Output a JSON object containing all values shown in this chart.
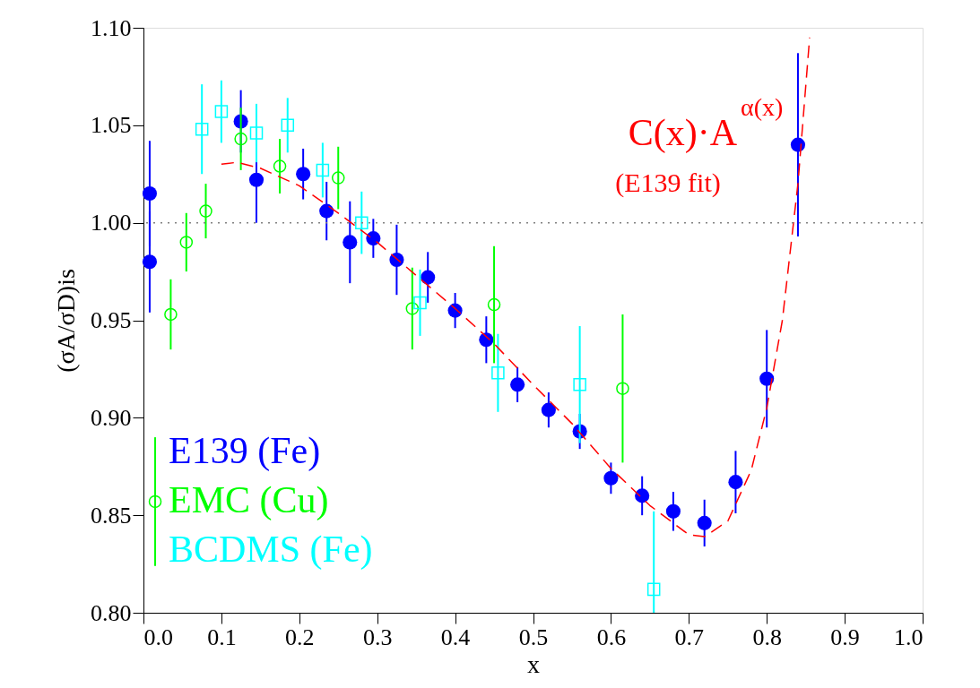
{
  "chart_data": {
    "type": "scatter",
    "xlabel": "x",
    "ylabel": "(σA/σD)is",
    "xlim": [
      0,
      1.0
    ],
    "ylim": [
      0.8,
      1.1
    ],
    "xticks": [
      {
        "value": 0,
        "label": "0.0"
      },
      0.1,
      0.2,
      0.3,
      0.4,
      0.5,
      0.6,
      0.7,
      0.8,
      0.9,
      {
        "value": 1.0,
        "label": "1.0"
      }
    ],
    "yticks": [
      {
        "value": 0.8,
        "label": "0.80"
      },
      0.85,
      {
        "value": 0.9,
        "label": "0.90"
      },
      0.95,
      {
        "value": 1.0,
        "label": "1.00"
      },
      1.05,
      {
        "value": 1.1,
        "label": "1.10"
      }
    ],
    "grid": false,
    "legend": "bottom left",
    "series": [
      {
        "name": "E139 (Fe)",
        "color": "#0000ff",
        "marker": "circle",
        "x": [
          0.008,
          0.008,
          0.125,
          0.145,
          0.205,
          0.235,
          0.265,
          0.295,
          0.325,
          0.365,
          0.4,
          0.44,
          0.48,
          0.52,
          0.56,
          0.6,
          0.64,
          0.68,
          0.72,
          0.76,
          0.8,
          0.84
        ],
        "values": [
          1.015,
          0.98,
          1.052,
          1.022,
          1.025,
          1.006,
          0.99,
          0.992,
          0.981,
          0.972,
          0.955,
          0.94,
          0.917,
          0.904,
          0.893,
          0.869,
          0.86,
          0.852,
          0.846,
          0.867,
          0.92,
          1.04
        ],
        "errors": [
          0.027,
          0.026,
          0.016,
          0.022,
          0.013,
          0.015,
          0.021,
          0.01,
          0.018,
          0.013,
          0.009,
          0.012,
          0.009,
          0.009,
          0.009,
          0.008,
          0.01,
          0.01,
          0.012,
          0.016,
          0.025,
          0.047
        ]
      },
      {
        "name": "EMC (Cu)",
        "color": "#00ff00",
        "marker": "circle",
        "x": [
          0.015,
          0.035,
          0.055,
          0.08,
          0.125,
          0.175,
          0.25,
          0.345,
          0.45,
          0.615
        ],
        "values": [
          0.857,
          0.953,
          0.99,
          1.006,
          1.043,
          1.029,
          1.023,
          0.956,
          0.958,
          0.915
        ],
        "errors": [
          0.033,
          0.018,
          0.015,
          0.014,
          0.016,
          0.014,
          0.016,
          0.021,
          0.03,
          0.038
        ]
      },
      {
        "name": "BCDMS (Fe)",
        "color": "#00ffff",
        "marker": "square",
        "x": [
          0.075,
          0.1,
          0.145,
          0.185,
          0.23,
          0.28,
          0.355,
          0.455,
          0.56,
          0.655
        ],
        "values": [
          1.048,
          1.057,
          1.046,
          1.05,
          1.027,
          1.0,
          0.959,
          0.923,
          0.917,
          0.812
        ],
        "errors": [
          0.023,
          0.016,
          0.015,
          0.014,
          0.014,
          0.016,
          0.017,
          0.02,
          0.03,
          [
            0.8,
            0.852
          ]
        ]
      },
      {
        "type": "line",
        "color": "#ff0000",
        "line_style": "dashed",
        "x": [
          0.1,
          0.12,
          0.15,
          0.2,
          0.25,
          0.3,
          0.35,
          0.4,
          0.45,
          0.5,
          0.55,
          0.6,
          0.65,
          0.7,
          0.72,
          0.75,
          0.78,
          0.8,
          0.82,
          0.84,
          0.855
        ],
        "values": [
          1.03,
          1.031,
          1.028,
          1.019,
          1.005,
          0.99,
          0.973,
          0.956,
          0.938,
          0.917,
          0.897,
          0.874,
          0.855,
          0.84,
          0.839,
          0.847,
          0.873,
          0.905,
          0.95,
          1.02,
          1.095
        ]
      }
    ],
    "ref_lines": [
      {
        "axis": "y",
        "value": 1.0,
        "color": "#808080",
        "line_style": "dotted"
      }
    ],
    "annotations": [
      "C(x)·A$^{α(x)}$",
      "(E139 fit)"
    ]
  }
}
